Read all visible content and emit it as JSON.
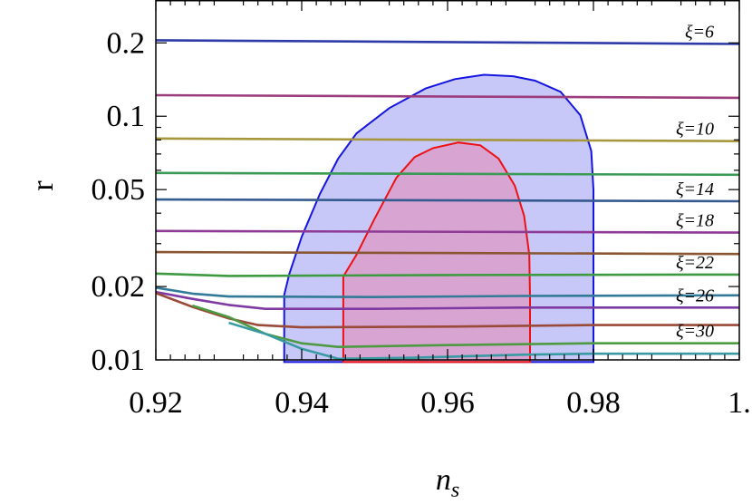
{
  "chart_data": {
    "type": "line",
    "title": "",
    "xlabel": "n",
    "xlabel_sub": "s",
    "ylabel": "r",
    "xlim": [
      0.92,
      1.0
    ],
    "ylim": [
      0.01,
      0.3
    ],
    "yscale": "log",
    "x_ticks": [
      {
        "value": 0.92,
        "label": "0.92"
      },
      {
        "value": 0.94,
        "label": "0.94"
      },
      {
        "value": 0.96,
        "label": "0.96"
      },
      {
        "value": 0.98,
        "label": "0.98"
      },
      {
        "value": 1.0,
        "label": "1."
      }
    ],
    "y_ticks": [
      {
        "value": 0.01,
        "label": "0.01"
      },
      {
        "value": 0.02,
        "label": "0.02"
      },
      {
        "value": 0.05,
        "label": "0.05"
      },
      {
        "value": 0.1,
        "label": "0.1"
      },
      {
        "value": 0.2,
        "label": "0.2"
      }
    ],
    "contours": [
      {
        "level": "outer",
        "fill": "#c8c8f8",
        "stroke": "#1515e0",
        "points": [
          [
            0.9376,
            0.0098
          ],
          [
            0.9376,
            0.0185
          ],
          [
            0.9383,
            0.0225
          ],
          [
            0.94,
            0.032
          ],
          [
            0.9425,
            0.048
          ],
          [
            0.945,
            0.067
          ],
          [
            0.9475,
            0.085
          ],
          [
            0.952,
            0.108
          ],
          [
            0.957,
            0.13
          ],
          [
            0.961,
            0.142
          ],
          [
            0.965,
            0.148
          ],
          [
            0.969,
            0.146
          ],
          [
            0.972,
            0.14
          ],
          [
            0.9755,
            0.126
          ],
          [
            0.9782,
            0.101
          ],
          [
            0.9797,
            0.072
          ],
          [
            0.98,
            0.05
          ],
          [
            0.98,
            0.0098
          ]
        ]
      },
      {
        "level": "inner",
        "fill": "#d8a4d2",
        "stroke": "#ee1010",
        "points": [
          [
            0.9457,
            0.0098
          ],
          [
            0.9457,
            0.022
          ],
          [
            0.9475,
            0.027
          ],
          [
            0.95,
            0.038
          ],
          [
            0.953,
            0.056
          ],
          [
            0.9555,
            0.068
          ],
          [
            0.958,
            0.074
          ],
          [
            0.9615,
            0.078
          ],
          [
            0.9645,
            0.076
          ],
          [
            0.967,
            0.067
          ],
          [
            0.9692,
            0.052
          ],
          [
            0.9705,
            0.039
          ],
          [
            0.9712,
            0.027
          ],
          [
            0.9713,
            0.018
          ],
          [
            0.9713,
            0.0098
          ]
        ]
      }
    ],
    "series": [
      {
        "label": "ξ=6",
        "color": "#2e3aa8",
        "points": [
          [
            0.92,
            0.205
          ],
          [
            1.0,
            0.198
          ]
        ]
      },
      {
        "label": "",
        "color": "#9b3c7c",
        "points": [
          [
            0.92,
            0.122
          ],
          [
            1.0,
            0.119
          ]
        ]
      },
      {
        "label": "ξ=10",
        "color": "#a6963c",
        "points": [
          [
            0.92,
            0.081
          ],
          [
            1.0,
            0.079
          ]
        ]
      },
      {
        "label": "",
        "color": "#3a9a56",
        "points": [
          [
            0.92,
            0.0585
          ],
          [
            1.0,
            0.0575
          ]
        ]
      },
      {
        "label": "ξ=14",
        "color": "#355a90",
        "points": [
          [
            0.92,
            0.0455
          ],
          [
            1.0,
            0.0448
          ]
        ]
      },
      {
        "label": "ξ=18",
        "color": "#8e3a96",
        "points": [
          [
            0.92,
            0.0338
          ],
          [
            1.0,
            0.0333
          ]
        ]
      },
      {
        "label": "",
        "color": "#8a5532",
        "points": [
          [
            0.92,
            0.0277
          ],
          [
            1.0,
            0.0272
          ]
        ]
      },
      {
        "label": "ξ=22",
        "color": "#3e9a40",
        "points": [
          [
            0.92,
            0.0226
          ],
          [
            0.93,
            0.0221
          ],
          [
            0.96,
            0.0223
          ],
          [
            1.0,
            0.0224
          ]
        ]
      },
      {
        "label": "",
        "color": "#337a98",
        "points": [
          [
            0.92,
            0.0198
          ],
          [
            0.925,
            0.0187
          ],
          [
            0.93,
            0.0182
          ],
          [
            0.95,
            0.0181
          ],
          [
            0.97,
            0.0183
          ],
          [
            1.0,
            0.0184
          ]
        ]
      },
      {
        "label": "ξ=26",
        "color": "#7e3aa2",
        "points": [
          [
            0.92,
            0.019
          ],
          [
            0.925,
            0.0178
          ],
          [
            0.93,
            0.0168
          ],
          [
            0.935,
            0.0162
          ],
          [
            0.95,
            0.0162
          ],
          [
            0.97,
            0.0164
          ],
          [
            1.0,
            0.0164
          ]
        ]
      },
      {
        "label": "",
        "color": "#9a4a38",
        "points": [
          [
            0.92,
            0.0188
          ],
          [
            0.925,
            0.0165
          ],
          [
            0.93,
            0.0148
          ],
          [
            0.934,
            0.0139
          ],
          [
            0.94,
            0.0136
          ],
          [
            0.96,
            0.0137
          ],
          [
            0.98,
            0.0139
          ],
          [
            1.0,
            0.0139
          ]
        ]
      },
      {
        "label": "ξ=30",
        "color": "#4e9a42",
        "points": [
          [
            0.925,
            0.0167
          ],
          [
            0.93,
            0.015
          ],
          [
            0.935,
            0.0128
          ],
          [
            0.94,
            0.0117
          ],
          [
            0.945,
            0.0113
          ],
          [
            0.96,
            0.0115
          ],
          [
            0.98,
            0.0117
          ],
          [
            1.0,
            0.0117
          ]
        ]
      },
      {
        "label": "",
        "color": "#3a9aa2",
        "points": [
          [
            0.93,
            0.0142
          ],
          [
            0.935,
            0.0128
          ],
          [
            0.94,
            0.0111
          ],
          [
            0.945,
            0.0101
          ],
          [
            0.955,
            0.0102
          ],
          [
            0.97,
            0.0105
          ],
          [
            0.98,
            0.0106
          ],
          [
            1.0,
            0.0106
          ]
        ]
      }
    ]
  }
}
